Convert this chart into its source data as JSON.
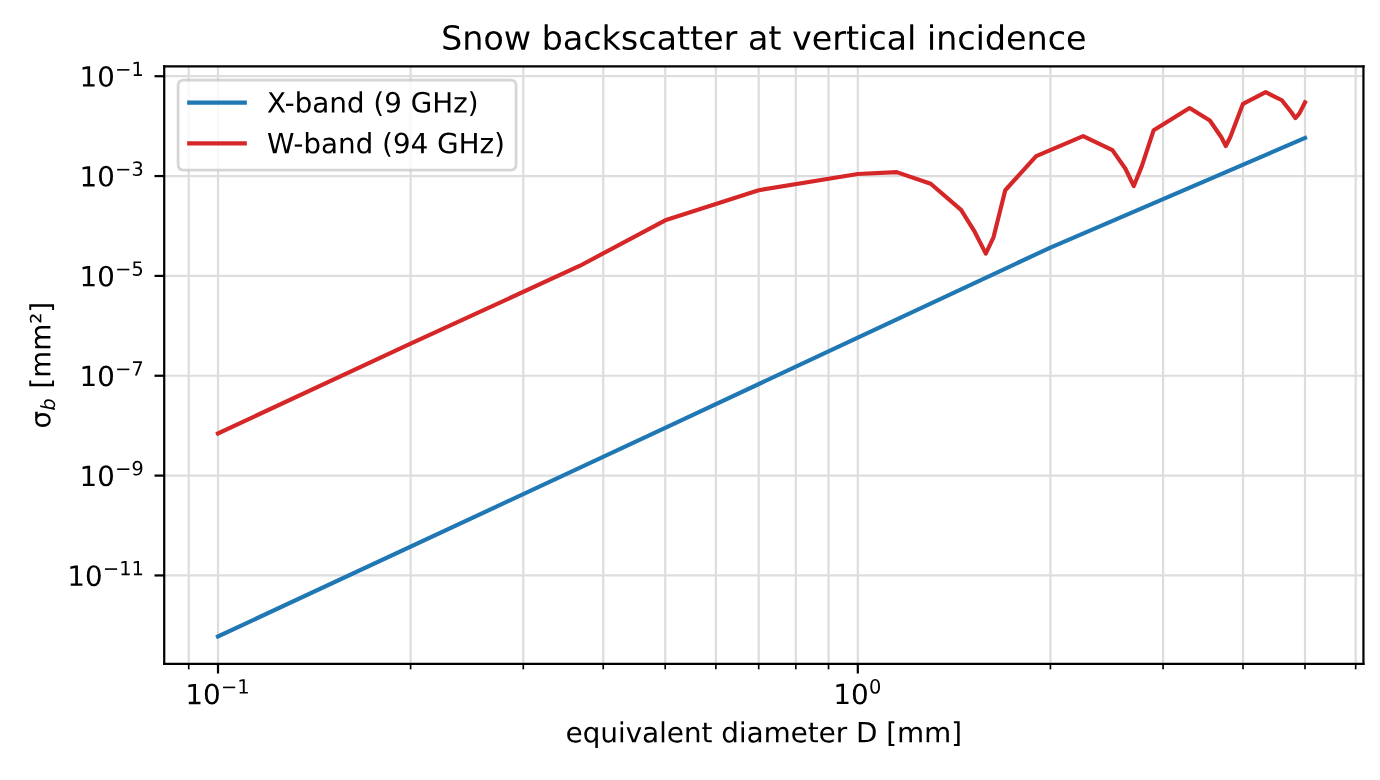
{
  "chart_data": {
    "type": "line",
    "title": "Snow backscatter at vertical incidence",
    "xlabel": "equivalent diameter D [mm]",
    "ylabel": "σ$_{b}$ [mm²]",
    "log": "xy",
    "grid": true,
    "legend": "top left",
    "xlim": [
      0.0824,
      6.17
    ],
    "ylim": [
      1.7e-13,
      0.158
    ],
    "xticks": [
      {
        "value": 0.09,
        "label": null
      },
      {
        "value": 0.1,
        "label": "10$^{−1}$"
      },
      {
        "value": 0.2,
        "label": null
      },
      {
        "value": 0.3,
        "label": null
      },
      {
        "value": 0.4,
        "label": null
      },
      {
        "value": 0.5,
        "label": null
      },
      {
        "value": 0.6,
        "label": null
      },
      {
        "value": 0.7,
        "label": null
      },
      {
        "value": 0.8,
        "label": null
      },
      {
        "value": 0.9,
        "label": null
      },
      {
        "value": 1,
        "label": "10$^{0}$"
      },
      {
        "value": 2,
        "label": null
      },
      {
        "value": 3,
        "label": null
      },
      {
        "value": 4,
        "label": null
      },
      {
        "value": 5,
        "label": null
      },
      {
        "value": 6,
        "label": null
      }
    ],
    "yticks": [
      {
        "value": 1e-11,
        "label": "10$^{−11}$"
      },
      {
        "value": 1e-09,
        "label": "10$^{−9}$"
      },
      {
        "value": 1e-07,
        "label": "10$^{−7}$"
      },
      {
        "value": 1e-05,
        "label": "10$^{−5}$"
      },
      {
        "value": 0.001,
        "label": "10$^{−3}$"
      },
      {
        "value": 0.1,
        "label": "10$^{−1}$"
      }
    ],
    "series": [
      {
        "name": "X-band (9 GHz)",
        "color": "#1f77b4",
        "x": [
          0.1,
          0.5,
          1,
          2,
          5
        ],
        "values": [
          6e-13,
          9e-09,
          5.8e-07,
          3.7e-05,
          0.0058
        ]
      },
      {
        "name": "W-band (94 GHz)",
        "color": "#d62728",
        "x": [
          0.1,
          0.2,
          0.368,
          0.5,
          0.7,
          1.0,
          1.15,
          1.3,
          1.45,
          1.52,
          1.585,
          1.63,
          1.7,
          1.9,
          2.25,
          2.5,
          2.62,
          2.7,
          2.78,
          2.9,
          3.3,
          3.55,
          3.7,
          3.76,
          3.82,
          4.0,
          4.34,
          4.6,
          4.76,
          4.83,
          4.9,
          5.0
        ],
        "values": [
          7e-09,
          4.4e-07,
          1.6e-05,
          0.00013,
          0.00052,
          0.0011,
          0.0012,
          0.0007,
          0.00021,
          8e-05,
          2.8e-05,
          6e-05,
          0.00052,
          0.0025,
          0.0063,
          0.0033,
          0.0014,
          0.00063,
          0.0016,
          0.0083,
          0.023,
          0.013,
          0.006,
          0.004,
          0.006,
          0.028,
          0.048,
          0.033,
          0.019,
          0.0145,
          0.018,
          0.03
        ]
      }
    ]
  }
}
